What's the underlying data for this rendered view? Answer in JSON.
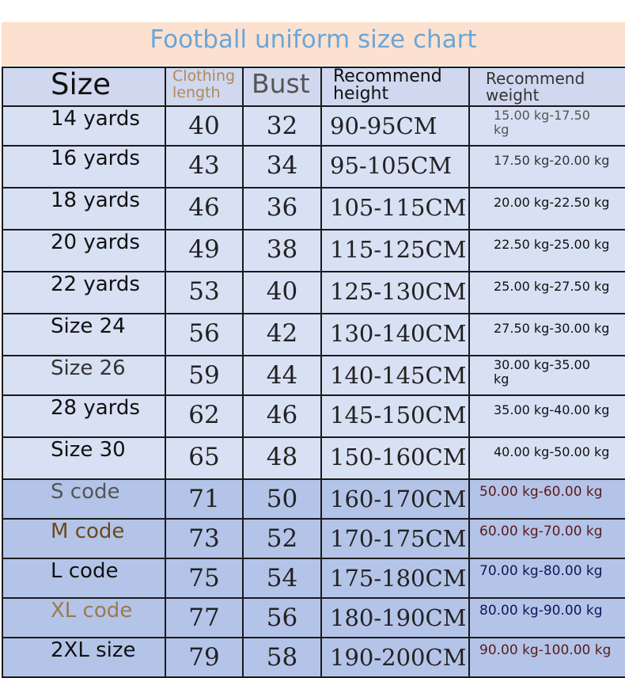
{
  "title": "Football uniform size chart",
  "headers": {
    "size": "Size",
    "length_line1": "Clothing",
    "length_line2": "length",
    "bust": "Bust",
    "height_line1": "Recommend",
    "height_line2": "height",
    "weight_line1": "Recommend",
    "weight_line2": "weight"
  },
  "rows": [
    {
      "size": "14 yards",
      "length": "40",
      "bust": "32",
      "height": "90-95CM",
      "weight": "15.00 kg-17.50 kg",
      "size_color": "#111111",
      "weight_color": "#555555"
    },
    {
      "size": "16 yards",
      "length": "43",
      "bust": "34",
      "height": "95-105CM",
      "weight": "17.50 kg-20.00 kg",
      "size_color": "#111111",
      "weight_color": "#333333"
    },
    {
      "size": "18 yards",
      "length": "46",
      "bust": "36",
      "height": "105-115CM",
      "weight": "20.00 kg-22.50 kg",
      "size_color": "#111111",
      "weight_color": "#111111"
    },
    {
      "size": "20 yards",
      "length": "49",
      "bust": "38",
      "height": "115-125CM",
      "weight": "22.50 kg-25.00 kg",
      "size_color": "#111111",
      "weight_color": "#111111"
    },
    {
      "size": "22 yards",
      "length": "53",
      "bust": "40",
      "height": "125-130CM",
      "weight": "25.00 kg-27.50 kg",
      "size_color": "#111111",
      "weight_color": "#111111"
    },
    {
      "size": "Size 24",
      "length": "56",
      "bust": "42",
      "height": "130-140CM",
      "weight": "27.50 kg-30.00 kg",
      "size_color": "#111111",
      "weight_color": "#111111"
    },
    {
      "size": "Size 26",
      "length": "59",
      "bust": "44",
      "height": "140-145CM",
      "weight": "30.00 kg-35.00 kg",
      "size_color": "#333333",
      "weight_color": "#111111"
    },
    {
      "size": "28 yards",
      "length": "62",
      "bust": "46",
      "height": "145-150CM",
      "weight": "35.00 kg-40.00 kg",
      "size_color": "#111111",
      "weight_color": "#111111"
    },
    {
      "size": "Size 30",
      "length": "65",
      "bust": "48",
      "height": "150-160CM",
      "weight": "40.00 kg-50.00 kg",
      "size_color": "#111111",
      "weight_color": "#111111"
    },
    {
      "size": "S code",
      "length": "71",
      "bust": "50",
      "height": "160-170CM",
      "weight": "50.00 kg-60.00 kg",
      "size_color": "#555555",
      "weight_color": "#5a1a1a"
    },
    {
      "size": "M code",
      "length": "73",
      "bust": "52",
      "height": "170-175CM",
      "weight": "60.00 kg-70.00 kg",
      "size_color": "#6b4a1a",
      "weight_color": "#5a1a1a"
    },
    {
      "size": "L code",
      "length": "75",
      "bust": "54",
      "height": "175-180CM",
      "weight": "70.00 kg-80.00 kg",
      "size_color": "#111111",
      "weight_color": "#14145a"
    },
    {
      "size": "XL code",
      "length": "77",
      "bust": "56",
      "height": "180-190CM",
      "weight": "80.00 kg-90.00 kg",
      "size_color": "#9a7a50",
      "weight_color": "#14145a"
    },
    {
      "size": "2XL size",
      "length": "79",
      "bust": "58",
      "height": "190-200CM",
      "weight": "90.00 kg-100.00 kg",
      "size_color": "#111111",
      "weight_color": "#5a1a1a"
    }
  ]
}
